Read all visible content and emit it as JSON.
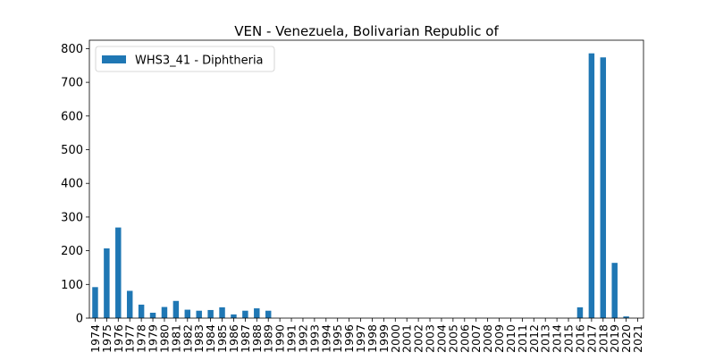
{
  "chart_data": {
    "type": "bar",
    "title": "VEN - Venezuela, Bolivarian Republic of",
    "xlabel": "",
    "ylabel": "",
    "ylim": [
      0,
      825
    ],
    "yticks": [
      0,
      100,
      200,
      300,
      400,
      500,
      600,
      700,
      800
    ],
    "legend_placement": "top-left",
    "grid": false,
    "categories": [
      "1974",
      "1975",
      "1976",
      "1977",
      "1978",
      "1979",
      "1980",
      "1981",
      "1982",
      "1983",
      "1984",
      "1985",
      "1986",
      "1987",
      "1988",
      "1989",
      "1990",
      "1991",
      "1992",
      "1993",
      "1994",
      "1995",
      "1996",
      "1997",
      "1998",
      "1999",
      "2000",
      "2001",
      "2002",
      "2003",
      "2004",
      "2005",
      "2006",
      "2007",
      "2008",
      "2009",
      "2010",
      "2011",
      "2012",
      "2013",
      "2014",
      "2015",
      "2016",
      "2017",
      "2018",
      "2019",
      "2020",
      "2021"
    ],
    "series": [
      {
        "name": "WHS3_41 - Diphtheria",
        "color": "#1f77b4",
        "values": [
          92,
          207,
          269,
          81,
          40,
          16,
          33,
          51,
          25,
          22,
          24,
          32,
          11,
          22,
          29,
          22,
          0,
          0,
          0,
          0,
          0,
          0,
          0,
          0,
          0,
          0,
          0,
          0,
          0,
          0,
          0,
          0,
          0,
          0,
          0,
          0,
          0,
          0,
          0,
          0,
          0,
          0,
          32,
          786,
          774,
          164,
          5,
          0
        ]
      }
    ]
  }
}
